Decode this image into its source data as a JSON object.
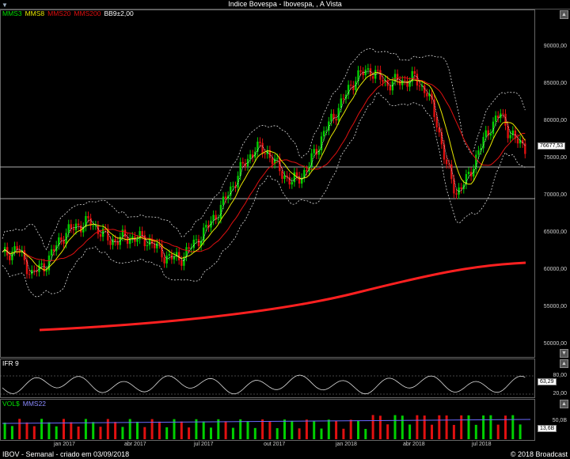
{
  "window": {
    "title": "Indice Bovespa - Ibovespa, , A Vista"
  },
  "legend": {
    "mms3": {
      "label": "MMS3",
      "color": "#00e000"
    },
    "mms8": {
      "label": "MMS8",
      "color": "#e8e800"
    },
    "mms20": {
      "label": "MMS20",
      "color": "#e01010"
    },
    "mms200": {
      "label": "MMS200",
      "color": "#e01010"
    },
    "bb": {
      "label": "BB9±2,00",
      "color": "#ffffff"
    }
  },
  "price_axis": {
    "ticks": [
      "90000,00",
      "85000,00",
      "80000,00",
      "75000,00",
      "70000,00",
      "65000,00",
      "60000,00",
      "55000,00",
      "50000,00"
    ],
    "current_value": "76677,53"
  },
  "ifr": {
    "title": "IFR 9",
    "ticks": [
      "80,00",
      "63,29",
      "20,00"
    ]
  },
  "vol": {
    "title_vol": "VOL$",
    "title_mms": "MMS22",
    "ticks": [
      "50,0B",
      "13,6B"
    ]
  },
  "x_axis": {
    "labels": [
      "jan 2017",
      "abr 2017",
      "jul 2017",
      "out 2017",
      "jan 2018",
      "abr 2018",
      "jul 2018"
    ]
  },
  "footer": {
    "left": "IBOV - Semanal - criado em 03/09/2018",
    "right": "© 2018 Broadcast"
  },
  "controls": {
    "up": "▲",
    "down": "▼"
  }
}
